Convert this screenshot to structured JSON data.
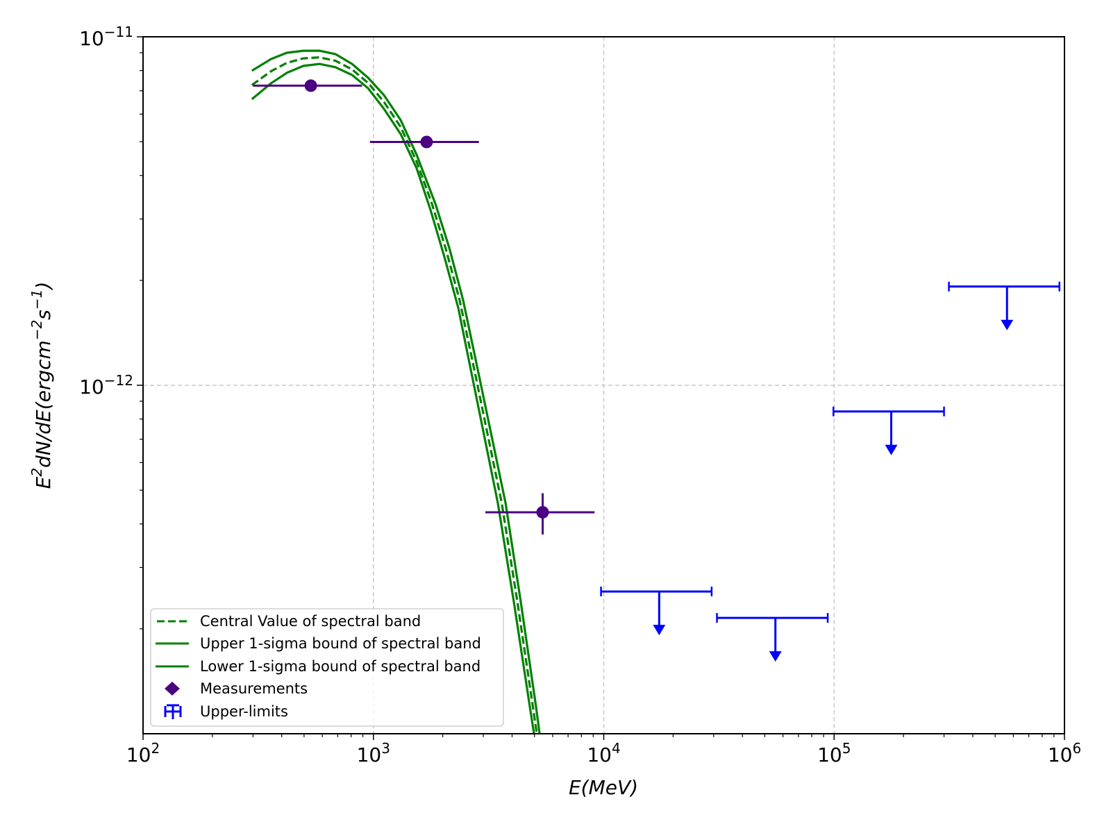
{
  "chart_data": {
    "type": "scatter",
    "title": "",
    "xlabel": "E(MeV)",
    "ylabel": {
      "base": "E",
      "sup1": "2",
      "mid": "dN/dE(ergcm",
      "sup2": "−2",
      "mid2": "s",
      "sup3": "−1",
      "end": ")"
    },
    "xscale": "log",
    "yscale": "log",
    "xlim": [
      100,
      1000000
    ],
    "ylim": [
      1e-13,
      1e-11
    ],
    "grid": true,
    "legend_position": "lower-left",
    "x_ticks": [
      {
        "value": 100,
        "base": "10",
        "exp": "2"
      },
      {
        "value": 1000,
        "base": "10",
        "exp": "3"
      },
      {
        "value": 10000,
        "base": "10",
        "exp": "4"
      },
      {
        "value": 100000,
        "base": "10",
        "exp": "5"
      },
      {
        "value": 1000000,
        "base": "10",
        "exp": "6"
      }
    ],
    "y_ticks": [
      {
        "value": 1e-11,
        "base": "10",
        "exp": "−11"
      },
      {
        "value": 1e-12,
        "base": "10",
        "exp": "−12"
      }
    ],
    "colors": {
      "band": "#008000",
      "measurements": "#4b0082",
      "upper_limits": "#0000ff",
      "grid": "#c8c8c8"
    },
    "series": [
      {
        "name": "Central Value of spectral band",
        "style": "dashed",
        "x": [
          297,
          359,
          421,
          497,
          583,
          684,
          808,
          948,
          1112,
          1313,
          1541,
          1795,
          2056,
          2371,
          2780,
          3606,
          4217,
          4930,
          5120
        ],
        "y": [
          7.27e-12,
          7.96e-12,
          8.42e-12,
          8.67e-12,
          8.73e-12,
          8.54e-12,
          8.06e-12,
          7.37e-12,
          6.5e-12,
          5.51e-12,
          4.38e-12,
          3.32e-12,
          2.48e-12,
          1.75e-12,
          1.06e-12,
          4.6e-13,
          2.39e-13,
          1.19e-13,
          1e-13
        ]
      },
      {
        "name": "Upper 1-sigma bound of spectral band",
        "style": "solid",
        "x": [
          297,
          359,
          421,
          497,
          583,
          684,
          808,
          948,
          1112,
          1313,
          1541,
          1858,
          2135,
          2455,
          2879,
          3745,
          4362,
          5085,
          5265
        ],
        "y": [
          7.99e-12,
          8.63e-12,
          9e-12,
          9.12e-12,
          9.12e-12,
          8.92e-12,
          8.36e-12,
          7.63e-12,
          6.8e-12,
          5.77e-12,
          4.58e-12,
          3.32e-12,
          2.48e-12,
          1.75e-12,
          1.06e-12,
          4.6e-13,
          2.39e-13,
          1.19e-13,
          1e-13
        ]
      },
      {
        "name": "Lower 1-sigma bound of spectral band",
        "style": "solid",
        "x": [
          297,
          359,
          421,
          497,
          583,
          684,
          808,
          948,
          1112,
          1313,
          1541,
          1771,
          2032,
          2335,
          2684,
          3467,
          4070,
          4780,
          4980
        ],
        "y": [
          6.62e-12,
          7.35e-12,
          7.88e-12,
          8.25e-12,
          8.36e-12,
          8.18e-12,
          7.77e-12,
          7.12e-12,
          6.21e-12,
          5.26e-12,
          4.19e-12,
          3.18e-12,
          2.34e-12,
          1.67e-12,
          1.06e-12,
          4.6e-13,
          2.39e-13,
          1.19e-13,
          1e-13
        ]
      }
    ],
    "measurements": {
      "name": "Measurements",
      "points": [
        {
          "x": 535,
          "xmin": 300,
          "xmax": 893,
          "y": 7.24e-12
        },
        {
          "x": 1702,
          "xmin": 966,
          "xmax": 2870,
          "y": 4.99e-12
        },
        {
          "x": 5430,
          "xmin": 3060,
          "xmax": 9120,
          "y": 4.32e-13,
          "ymin": 3.73e-13,
          "ymax": 4.9e-13
        }
      ]
    },
    "upper_limits": {
      "name": "Upper-limits",
      "points": [
        {
          "x": 17400,
          "xmin": 9730,
          "xmax": 29400,
          "y": 2.56e-13
        },
        {
          "x": 55600,
          "xmin": 31000,
          "xmax": 93800,
          "y": 2.15e-13
        },
        {
          "x": 177000,
          "xmin": 99300,
          "xmax": 300000,
          "y": 8.41e-13
        },
        {
          "x": 563000,
          "xmin": 315000,
          "xmax": 951000,
          "y": 1.92e-12
        }
      ]
    },
    "legend": [
      "Central Value of spectral band",
      "Upper 1-sigma bound of spectral band",
      "Lower 1-sigma bound of spectral band",
      "Measurements",
      "Upper-limits"
    ]
  }
}
